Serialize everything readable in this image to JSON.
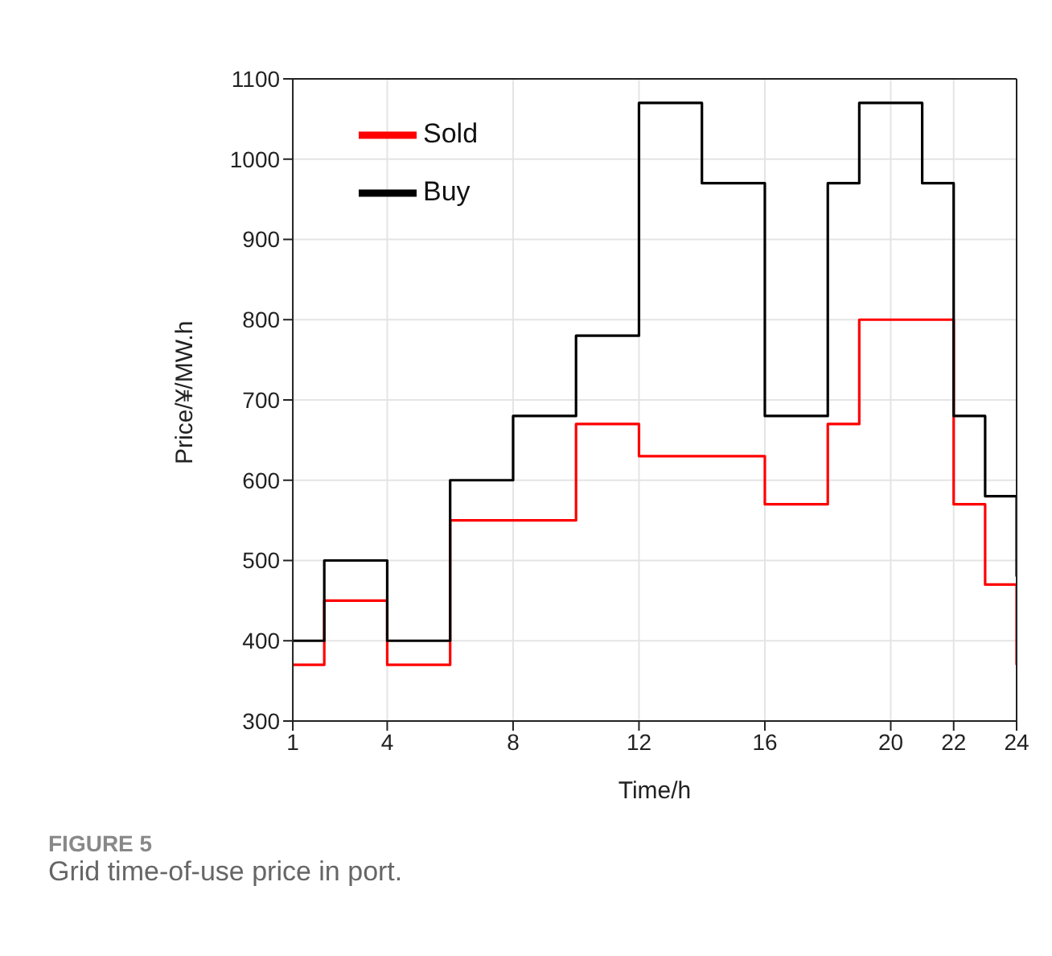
{
  "chart_data": {
    "type": "step",
    "title": "FIGURE 5",
    "subtitle": "Grid time-of-use price in port.",
    "xlabel": "Time/h",
    "ylabel": "Price/¥/MW.h",
    "x": [
      1,
      2,
      3,
      4,
      5,
      6,
      7,
      8,
      9,
      10,
      11,
      12,
      13,
      14,
      15,
      16,
      17,
      18,
      19,
      20,
      21,
      22,
      23,
      24
    ],
    "series": [
      {
        "name": "Sold",
        "color": "#ff0000",
        "values": [
          370,
          450,
          450,
          370,
          370,
          550,
          550,
          550,
          550,
          670,
          670,
          630,
          630,
          630,
          630,
          570,
          570,
          670,
          800,
          800,
          800,
          570,
          470,
          370
        ]
      },
      {
        "name": "Buy",
        "color": "#000000",
        "values": [
          400,
          500,
          500,
          400,
          400,
          600,
          600,
          680,
          680,
          780,
          780,
          1070,
          1070,
          970,
          970,
          680,
          680,
          970,
          1070,
          1070,
          970,
          680,
          580,
          480
        ]
      }
    ],
    "xlim": [
      1,
      24
    ],
    "xticks": [
      1,
      4,
      8,
      12,
      16,
      20,
      22,
      24
    ],
    "ylim": [
      300,
      1100
    ],
    "yticks": [
      300,
      400,
      500,
      600,
      700,
      800,
      900,
      1000,
      1100
    ],
    "grid": true,
    "legend": "top left"
  }
}
